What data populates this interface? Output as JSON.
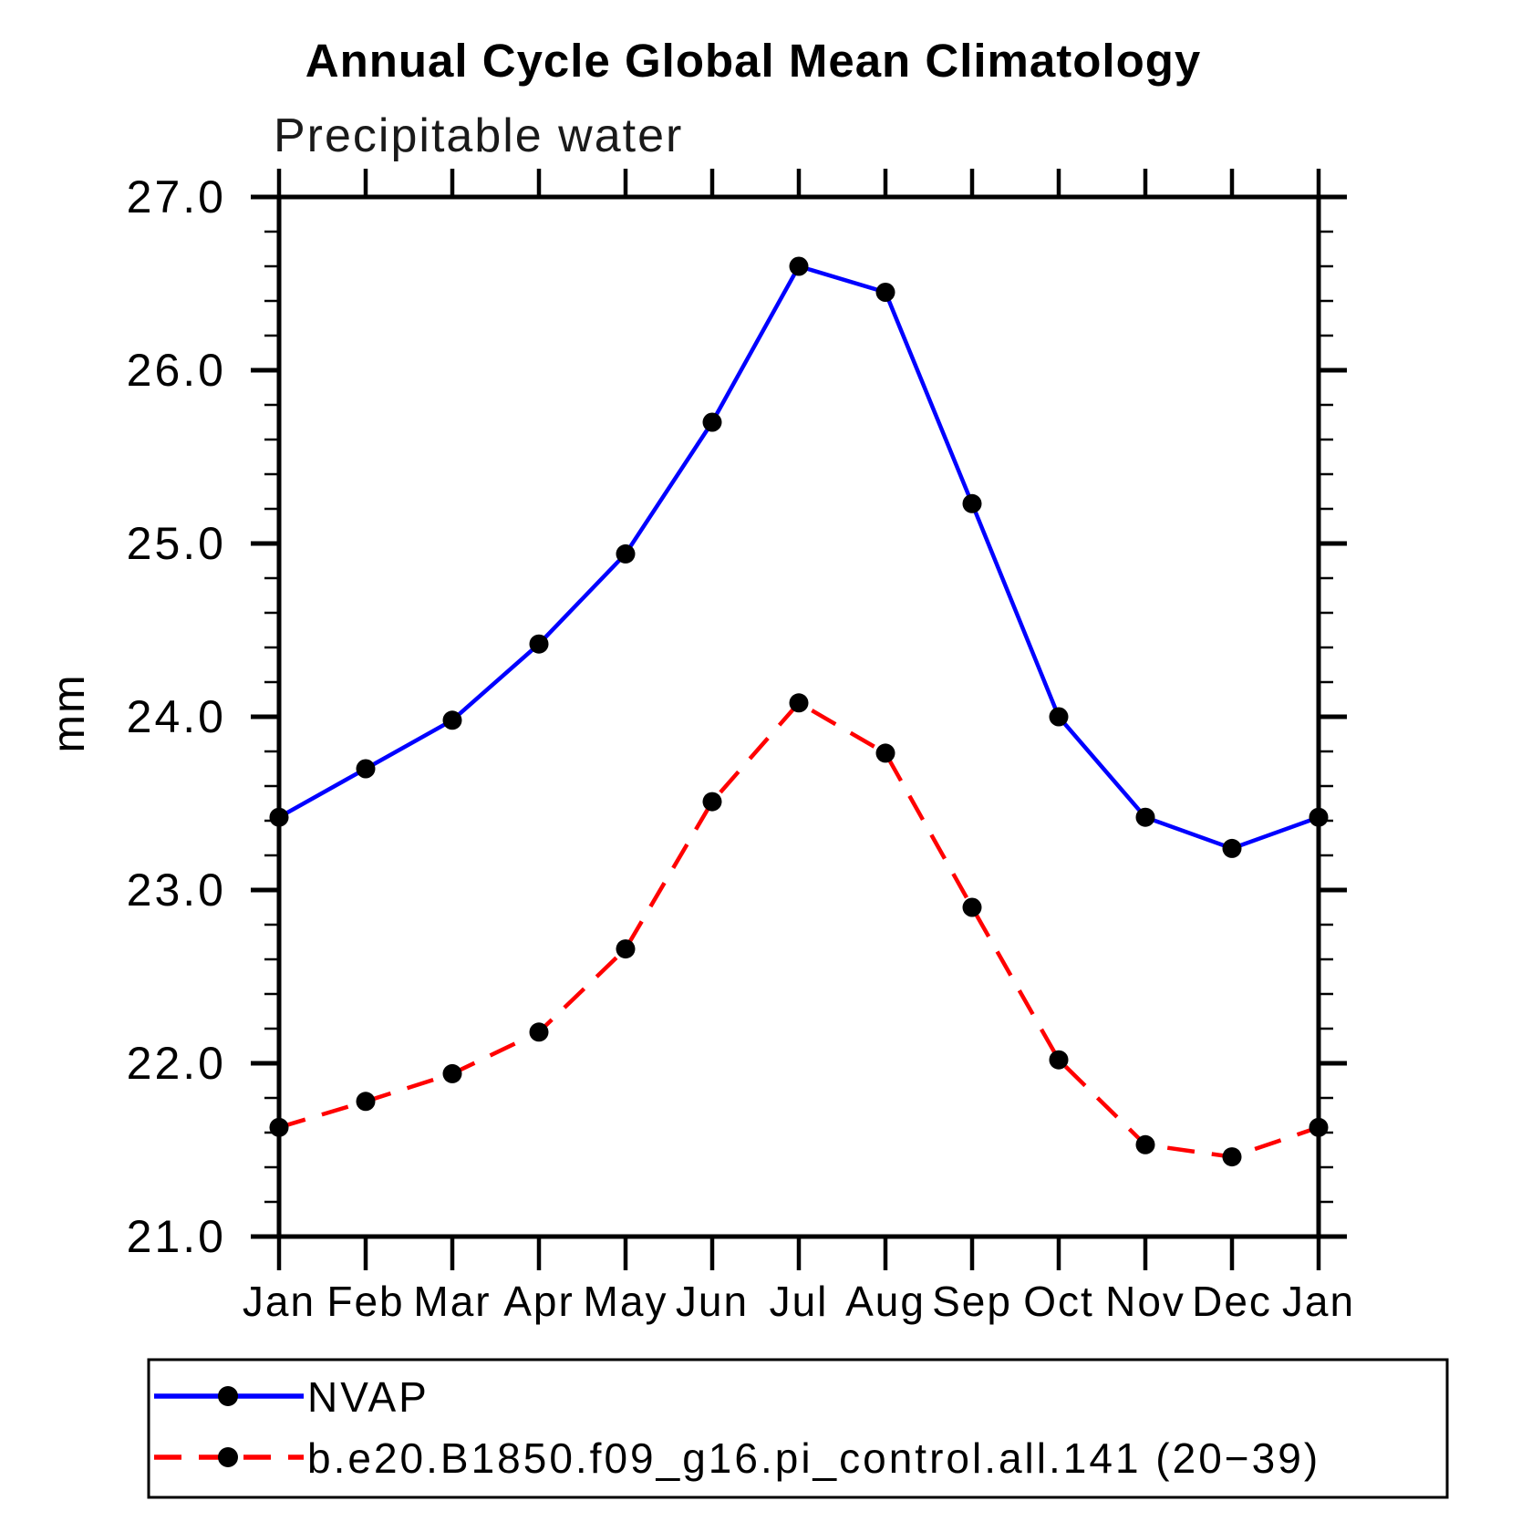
{
  "page": {
    "background": "#ffffff",
    "axis_color": "#000000",
    "text_color": "#000000"
  },
  "chart_data": {
    "type": "line",
    "title": "Annual Cycle Global Mean Climatology",
    "subtitle": "Precipitable water",
    "ylabel": "mm",
    "xlabel": "",
    "x_categories": [
      "Jan",
      "Feb",
      "Mar",
      "Apr",
      "May",
      "Jun",
      "Jul",
      "Aug",
      "Sep",
      "Oct",
      "Nov",
      "Dec",
      "Jan"
    ],
    "ylim": [
      21.0,
      27.0
    ],
    "ytick_interval_major": 1.0,
    "ytick_interval_minor": 0.2,
    "ytick_labels": [
      "27.0",
      "26.0",
      "25.0",
      "24.0",
      "23.0",
      "22.0",
      "21.0"
    ],
    "grid": false,
    "frame": "full-box-outward-ticks",
    "legend_position": "bottom-left-box",
    "series": [
      {
        "name": "NVAP",
        "line_color": "#0000ff",
        "line_style": "solid",
        "marker": "filled-circle",
        "marker_color": "#000000",
        "values": [
          23.42,
          23.7,
          23.98,
          24.42,
          24.94,
          25.7,
          26.6,
          26.45,
          25.23,
          24.0,
          23.42,
          23.24,
          23.42
        ]
      },
      {
        "name": "b.e20.B1850.f09_g16.pi_control.all.141 (20−39)",
        "line_color": "#ff0000",
        "line_style": "dashed",
        "marker": "filled-circle",
        "marker_color": "#000000",
        "values": [
          21.63,
          21.78,
          21.94,
          22.18,
          22.66,
          23.51,
          24.08,
          23.79,
          22.9,
          22.02,
          21.53,
          21.46,
          21.63
        ]
      }
    ]
  }
}
